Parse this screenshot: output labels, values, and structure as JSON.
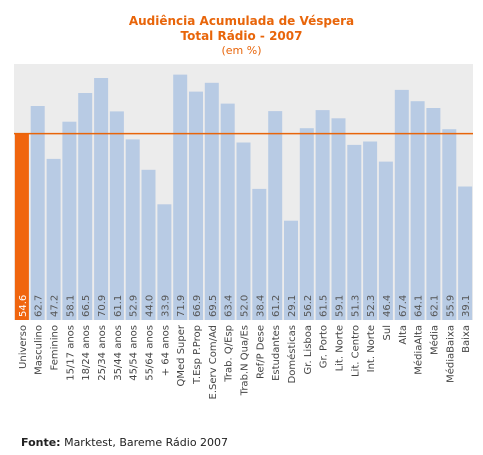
{
  "chart_data": {
    "type": "bar",
    "title": "Audiência Acumulada de Véspera",
    "subtitle": "Total Rádio - 2007",
    "unit_label": "(em %)",
    "categories": [
      "Universo",
      "Masculino",
      "Feminino",
      "15/17 anos",
      "18/24 anos",
      "25/34 anos",
      "35/44 anos",
      "45/54 anos",
      "55/64 anos",
      "+ 64 anos",
      "QMed Super",
      "T.Esp P.Prop",
      "E.Serv Com/Ad",
      "Trab. Q/Esp",
      "Trab.N Qua/Es",
      "Ref/P Dese",
      "Estudantes",
      "Domésticas",
      "Gr. Lisboa",
      "Gr. Porto",
      "Lit. Norte",
      "Lit. Centro",
      "Int. Norte",
      "Sul",
      "Alta",
      "MédiaAlta",
      "Média",
      "MédiaBaixa",
      "Baixa"
    ],
    "values": [
      54.6,
      62.7,
      47.2,
      58.1,
      66.5,
      70.9,
      61.1,
      52.9,
      44.0,
      33.9,
      71.9,
      66.9,
      69.5,
      63.4,
      52.0,
      38.4,
      61.2,
      29.1,
      56.2,
      61.5,
      59.1,
      51.3,
      52.3,
      46.4,
      67.4,
      64.1,
      62.1,
      55.9,
      39.1
    ],
    "value_labels": [
      "54.6",
      "62.7",
      "47.2",
      "58.1",
      "66.5",
      "70.9",
      "61.1",
      "52.9",
      "44.0",
      "33.9",
      "71.9",
      "66.9",
      "69.5",
      "63.4",
      "52.0",
      "38.4",
      "61.2",
      "29.1",
      "56.2",
      "61.5",
      "59.1",
      "51.3",
      "52.3",
      "46.4",
      "67.4",
      "64.1",
      "62.1",
      "55.9",
      "39.1"
    ],
    "highlight_index": 0,
    "reference_line": 54.6,
    "ylim": [
      0,
      75
    ],
    "grid": false,
    "colors": {
      "bar": "#b8cbe4",
      "highlight": "#f0650e",
      "reference_line": "#e8650a",
      "plot_background": "#ececec",
      "title": "#e8650a",
      "label_text": "#555555"
    }
  },
  "source": {
    "label": "Fonte:",
    "text": "Marktest, Bareme Rádio 2007"
  }
}
